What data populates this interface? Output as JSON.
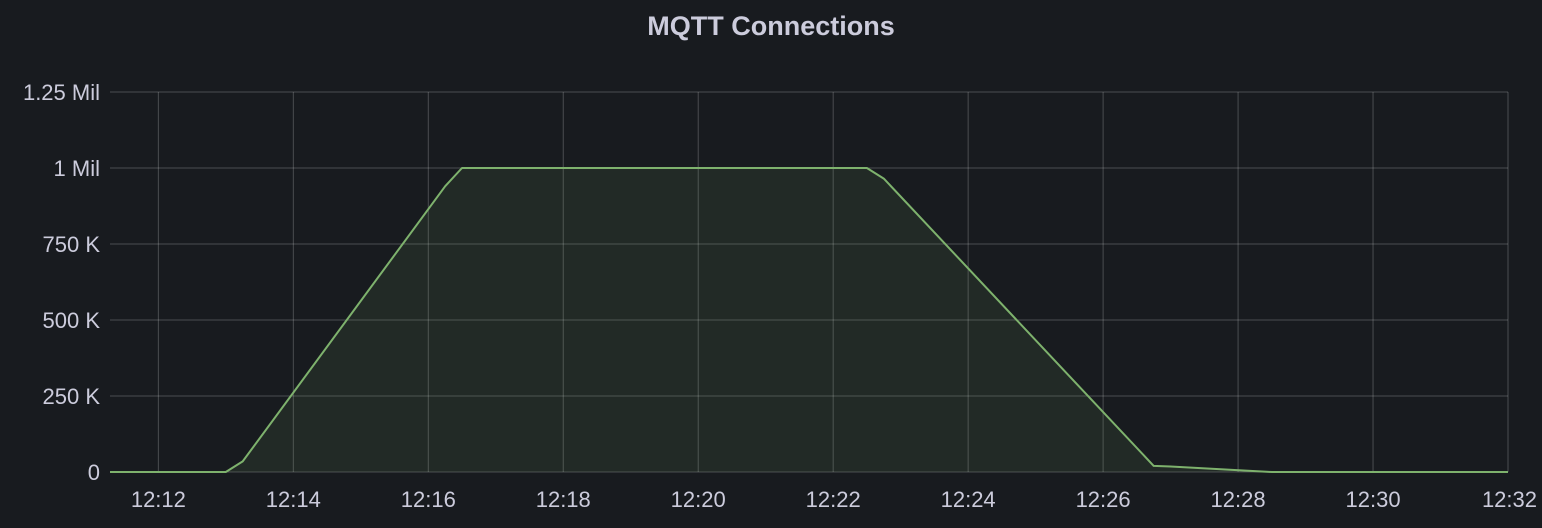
{
  "panel": {
    "title": "MQTT Connections"
  },
  "chart_data": {
    "type": "area",
    "title": "MQTT Connections",
    "xlabel": "",
    "ylabel": "",
    "x_ticks": [
      "12:12",
      "12:14",
      "12:16",
      "12:18",
      "12:20",
      "12:22",
      "12:24",
      "12:26",
      "12:28",
      "12:30",
      "12:32"
    ],
    "y_ticks": [
      {
        "value": 0,
        "label": "0"
      },
      {
        "value": 250000,
        "label": "250 K"
      },
      {
        "value": 500000,
        "label": "500 K"
      },
      {
        "value": 750000,
        "label": "750 K"
      },
      {
        "value": 1000000,
        "label": "1 Mil"
      },
      {
        "value": 1250000,
        "label": "1.25 Mil"
      }
    ],
    "xlim": [
      "12:11:17",
      "12:32:00"
    ],
    "ylim": [
      0,
      1250000
    ],
    "grid": true,
    "legend": "none",
    "series": [
      {
        "x": [
          "12:11:17",
          "12:13:00",
          "12:13:15",
          "12:16:15",
          "12:16:30",
          "12:22:30",
          "12:22:45",
          "12:26:45",
          "12:27:00",
          "12:28:30",
          "12:32:00"
        ],
        "y": [
          0,
          0,
          35000,
          940000,
          1000000,
          1000000,
          965000,
          20000,
          18000,
          0,
          0
        ]
      }
    ],
    "colors": {
      "line": "#7eb26d",
      "fill": "#7eb26d",
      "grid": "#ffffff",
      "text": "#ccccdc",
      "background": "#181b1f"
    }
  }
}
